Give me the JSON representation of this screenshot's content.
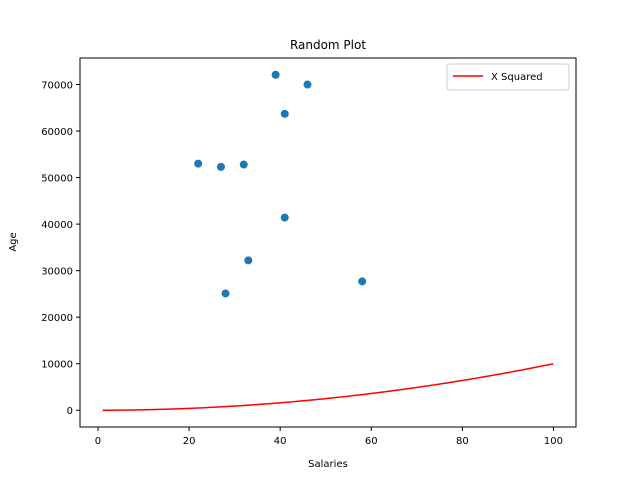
{
  "chart_data": {
    "type": "scatter",
    "title": "Random Plot",
    "xlabel": "Salaries",
    "ylabel": "Age",
    "xlim": [
      -3.95,
      104.95
    ],
    "ylim": [
      -3600,
      75700
    ],
    "xticks": [
      0,
      20,
      40,
      60,
      80,
      100
    ],
    "yticks": [
      0,
      10000,
      20000,
      30000,
      40000,
      50000,
      60000,
      70000
    ],
    "grid": false,
    "legend": {
      "placement": "top-right",
      "entries": [
        "X Squared"
      ]
    },
    "series": [
      {
        "kind": "scatter",
        "color": "#1f77b4",
        "points": [
          {
            "x": 22,
            "y": 53000
          },
          {
            "x": 27,
            "y": 52300
          },
          {
            "x": 28,
            "y": 25100
          },
          {
            "x": 32,
            "y": 52800
          },
          {
            "x": 33,
            "y": 32200
          },
          {
            "x": 39,
            "y": 72100
          },
          {
            "x": 41,
            "y": 63700
          },
          {
            "x": 41,
            "y": 41400
          },
          {
            "x": 46,
            "y": 70000
          },
          {
            "x": 58,
            "y": 27700
          }
        ]
      },
      {
        "kind": "line",
        "name": "X Squared",
        "color": "#ff0000",
        "function": "x^2",
        "x_range": [
          1,
          100
        ]
      }
    ]
  }
}
